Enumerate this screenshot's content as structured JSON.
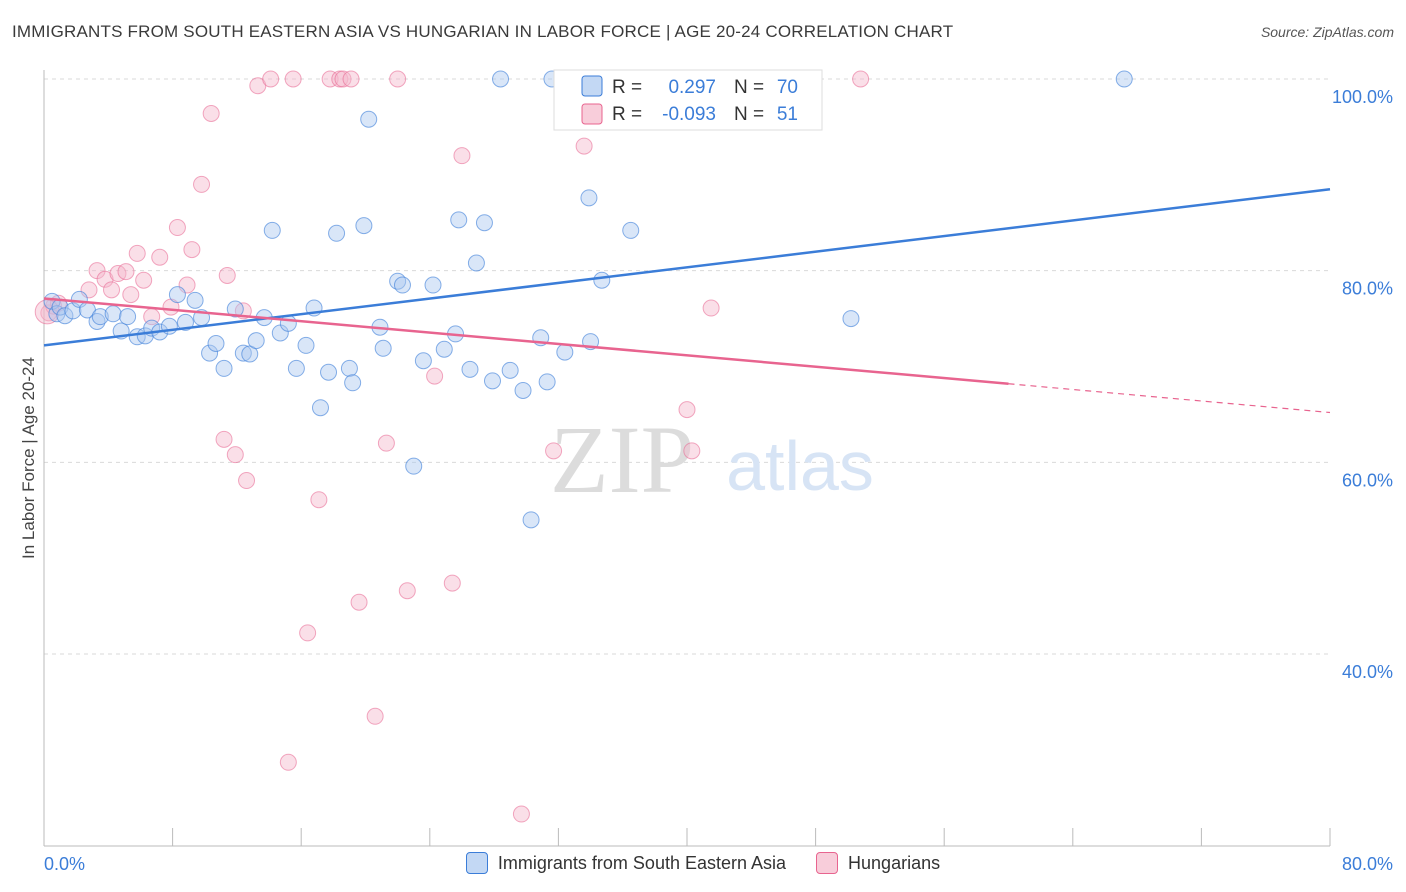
{
  "header": {
    "title": "IMMIGRANTS FROM SOUTH EASTERN ASIA VS HUNGARIAN IN LABOR FORCE | AGE 20-24 CORRELATION CHART",
    "source": "Source: ZipAtlas.com"
  },
  "watermark": {
    "zip": "ZIP",
    "atlas": "atlas"
  },
  "colors": {
    "blue": "#3b7dd8",
    "pink": "#e8648f",
    "blue_fill": "#aac8f0",
    "pink_fill": "#f5b8cb",
    "tick_label": "#3b7dd8",
    "grid": "#d9d9d9"
  },
  "legend_top": {
    "rows": [
      {
        "r_label": "R =",
        "r_value": "0.297",
        "n_label": "N =",
        "n_value": "70"
      },
      {
        "r_label": "R =",
        "r_value": "-0.093",
        "n_label": "N =",
        "n_value": "51"
      }
    ]
  },
  "legend_bottom": {
    "items": [
      {
        "label": "Immigrants from South Eastern Asia"
      },
      {
        "label": "Hungarians"
      }
    ]
  },
  "chart_data": {
    "type": "scatter",
    "title": "IMMIGRANTS FROM SOUTH EASTERN ASIA VS HUNGARIAN IN LABOR FORCE | AGE 20-24 CORRELATION CHART",
    "xlabel": "",
    "ylabel": "In Labor Force | Age 20-24",
    "xlim": [
      0,
      80
    ],
    "ylim": [
      20,
      102
    ],
    "x_tick_labels": [
      "0.0%",
      "80.0%"
    ],
    "y_ticks": [
      40,
      60,
      80,
      100
    ],
    "y_tick_labels": [
      "40.0%",
      "60.0%",
      "80.0%",
      "100.0%"
    ],
    "grid": true,
    "legend_position": "top-center",
    "series": [
      {
        "name": "Immigrants from South Eastern Asia",
        "r": 0.297,
        "n": 70,
        "trend": {
          "x": [
            0,
            80
          ],
          "y": [
            72.2,
            88.5
          ]
        },
        "points": [
          [
            0.5,
            76.8
          ],
          [
            0.8,
            75.5
          ],
          [
            1.0,
            76.2
          ],
          [
            1.3,
            75.3
          ],
          [
            1.8,
            75.8
          ],
          [
            2.2,
            77.0
          ],
          [
            2.7,
            75.9
          ],
          [
            3.3,
            74.7
          ],
          [
            3.5,
            75.2
          ],
          [
            4.3,
            75.5
          ],
          [
            4.8,
            73.7
          ],
          [
            5.2,
            75.2
          ],
          [
            5.8,
            73.1
          ],
          [
            6.3,
            73.2
          ],
          [
            6.7,
            74.0
          ],
          [
            7.2,
            73.6
          ],
          [
            7.8,
            74.2
          ],
          [
            8.3,
            77.5
          ],
          [
            8.8,
            74.6
          ],
          [
            9.4,
            76.9
          ],
          [
            9.8,
            75.1
          ],
          [
            10.3,
            71.4
          ],
          [
            10.7,
            72.4
          ],
          [
            11.2,
            69.8
          ],
          [
            11.9,
            76.0
          ],
          [
            12.4,
            71.4
          ],
          [
            12.8,
            71.3
          ],
          [
            13.2,
            72.7
          ],
          [
            13.7,
            75.1
          ],
          [
            14.2,
            84.2
          ],
          [
            14.7,
            73.5
          ],
          [
            15.2,
            74.5
          ],
          [
            15.7,
            69.8
          ],
          [
            16.3,
            72.2
          ],
          [
            16.8,
            76.1
          ],
          [
            17.2,
            65.7
          ],
          [
            17.7,
            69.4
          ],
          [
            18.2,
            83.9
          ],
          [
            19.0,
            69.8
          ],
          [
            19.2,
            68.3
          ],
          [
            19.9,
            84.7
          ],
          [
            20.2,
            95.8
          ],
          [
            20.9,
            74.1
          ],
          [
            21.1,
            71.9
          ],
          [
            22.0,
            78.9
          ],
          [
            22.3,
            78.5
          ],
          [
            23.0,
            59.6
          ],
          [
            23.6,
            70.6
          ],
          [
            24.2,
            78.5
          ],
          [
            24.9,
            71.8
          ],
          [
            25.6,
            73.4
          ],
          [
            25.8,
            85.3
          ],
          [
            26.5,
            69.7
          ],
          [
            26.9,
            80.8
          ],
          [
            27.4,
            85.0
          ],
          [
            27.9,
            68.5
          ],
          [
            28.4,
            100.0
          ],
          [
            29.0,
            69.6
          ],
          [
            29.8,
            67.5
          ],
          [
            30.3,
            54.0
          ],
          [
            30.9,
            73.0
          ],
          [
            31.3,
            68.4
          ],
          [
            31.6,
            100.0
          ],
          [
            32.4,
            71.5
          ],
          [
            33.9,
            87.6
          ],
          [
            34.0,
            72.6
          ],
          [
            34.7,
            79.0
          ],
          [
            36.5,
            84.2
          ],
          [
            50.2,
            75.0
          ],
          [
            67.2,
            100.0
          ]
        ]
      },
      {
        "name": "Hungarians",
        "r": -0.093,
        "n": 51,
        "trend": {
          "x": [
            0,
            60
          ],
          "y": [
            77.1,
            68.2
          ]
        },
        "trend_dashed": {
          "x": [
            60,
            80
          ],
          "y": [
            68.2,
            65.2
          ]
        },
        "points": [
          [
            0.3,
            75.6
          ],
          [
            0.6,
            76.3
          ],
          [
            0.9,
            76.6
          ],
          [
            2.8,
            78.0
          ],
          [
            3.3,
            80.0
          ],
          [
            3.8,
            79.1
          ],
          [
            4.2,
            78.0
          ],
          [
            4.6,
            79.7
          ],
          [
            5.1,
            79.9
          ],
          [
            5.4,
            77.5
          ],
          [
            5.8,
            81.8
          ],
          [
            6.2,
            79.0
          ],
          [
            6.7,
            75.2
          ],
          [
            7.2,
            81.4
          ],
          [
            7.9,
            76.2
          ],
          [
            8.3,
            84.5
          ],
          [
            8.9,
            78.5
          ],
          [
            9.2,
            82.2
          ],
          [
            9.8,
            89.0
          ],
          [
            10.4,
            96.4
          ],
          [
            11.2,
            62.4
          ],
          [
            11.4,
            79.5
          ],
          [
            11.9,
            60.8
          ],
          [
            12.4,
            75.8
          ],
          [
            12.6,
            58.1
          ],
          [
            13.3,
            99.3
          ],
          [
            14.1,
            100.0
          ],
          [
            15.2,
            28.7
          ],
          [
            15.5,
            100.0
          ],
          [
            16.4,
            42.2
          ],
          [
            17.1,
            56.1
          ],
          [
            17.8,
            100.0
          ],
          [
            18.4,
            100.0
          ],
          [
            18.6,
            100.0
          ],
          [
            19.1,
            100.0
          ],
          [
            19.6,
            45.4
          ],
          [
            20.6,
            33.5
          ],
          [
            21.3,
            62.0
          ],
          [
            22.0,
            100.0
          ],
          [
            22.6,
            46.6
          ],
          [
            24.3,
            69.0
          ],
          [
            25.4,
            47.4
          ],
          [
            26.0,
            92.0
          ],
          [
            29.7,
            23.3
          ],
          [
            31.7,
            61.2
          ],
          [
            33.6,
            93.0
          ],
          [
            40.0,
            65.5
          ],
          [
            40.3,
            61.2
          ],
          [
            41.5,
            76.1
          ],
          [
            50.8,
            100.0
          ],
          [
            0.2,
            75.7
          ]
        ]
      }
    ]
  }
}
